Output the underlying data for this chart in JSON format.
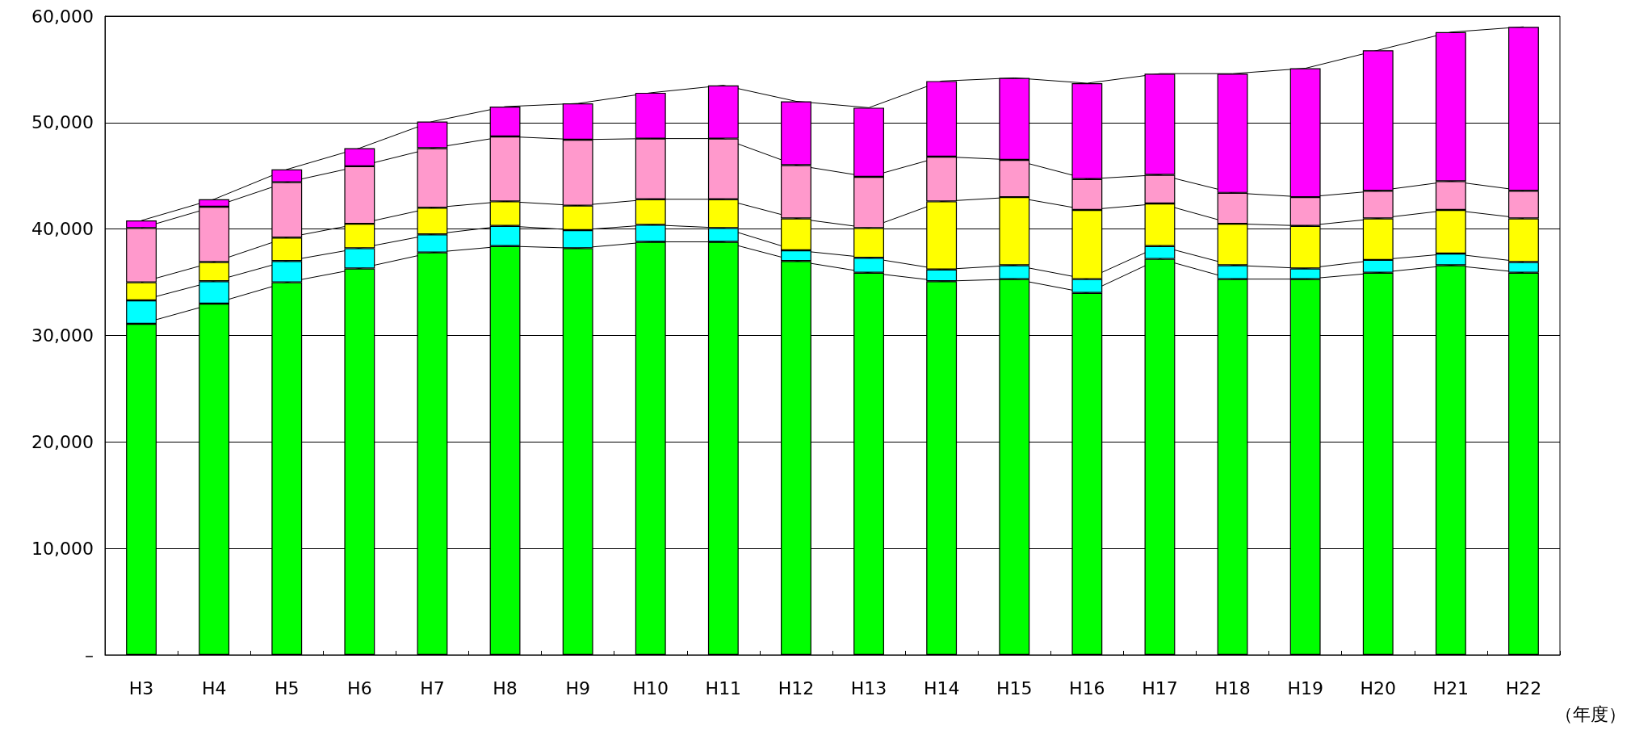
{
  "chart_data": {
    "type": "bar",
    "stacked": true,
    "xlabel": "（年度）",
    "categories": [
      "H3",
      "H4",
      "H5",
      "H6",
      "H7",
      "H8",
      "H9",
      "H10",
      "H11",
      "H12",
      "H13",
      "H14",
      "H15",
      "H16",
      "H17",
      "H18",
      "H19",
      "H20",
      "H21",
      "H22"
    ],
    "series": [
      {
        "color": "#00ff00",
        "values": [
          31100,
          33000,
          35000,
          36300,
          37800,
          38400,
          38200,
          38800,
          38800,
          37000,
          35900,
          35100,
          35300,
          34000,
          37200,
          35300,
          35300,
          35900,
          36600,
          35900
        ]
      },
      {
        "color": "#00ffff",
        "values": [
          2200,
          2100,
          2000,
          1900,
          1700,
          1900,
          1700,
          1600,
          1300,
          1000,
          1400,
          1100,
          1300,
          1300,
          1200,
          1300,
          1000,
          1200,
          1100,
          1000
        ]
      },
      {
        "color": "#ffff00",
        "values": [
          1700,
          1800,
          2200,
          2300,
          2500,
          2300,
          2300,
          2400,
          2700,
          3000,
          2800,
          6400,
          6400,
          6500,
          4000,
          3900,
          4000,
          3900,
          4100,
          4100
        ]
      },
      {
        "color": "#ff99cc",
        "values": [
          5100,
          5200,
          5200,
          5400,
          5600,
          6100,
          6200,
          5700,
          5700,
          5000,
          4800,
          4200,
          3500,
          2900,
          2700,
          2900,
          2700,
          2600,
          2700,
          2600
        ]
      },
      {
        "color": "#ff00ff",
        "values": [
          700,
          700,
          1200,
          1700,
          2500,
          2800,
          3400,
          4300,
          5000,
          6000,
          6500,
          7100,
          7700,
          9000,
          9500,
          11200,
          12100,
          13200,
          14000,
          15400
        ]
      }
    ],
    "ylim": [
      0,
      60000
    ],
    "yticks": [
      {
        "value": 0,
        "label": "–"
      },
      {
        "value": 10000,
        "label": "10,000"
      },
      {
        "value": 20000,
        "label": "20,000"
      },
      {
        "value": 30000,
        "label": "30,000"
      },
      {
        "value": 40000,
        "label": "40,000"
      },
      {
        "value": 50000,
        "label": "50,000"
      },
      {
        "value": 60000,
        "label": "60,000"
      }
    ],
    "grid": "y"
  }
}
